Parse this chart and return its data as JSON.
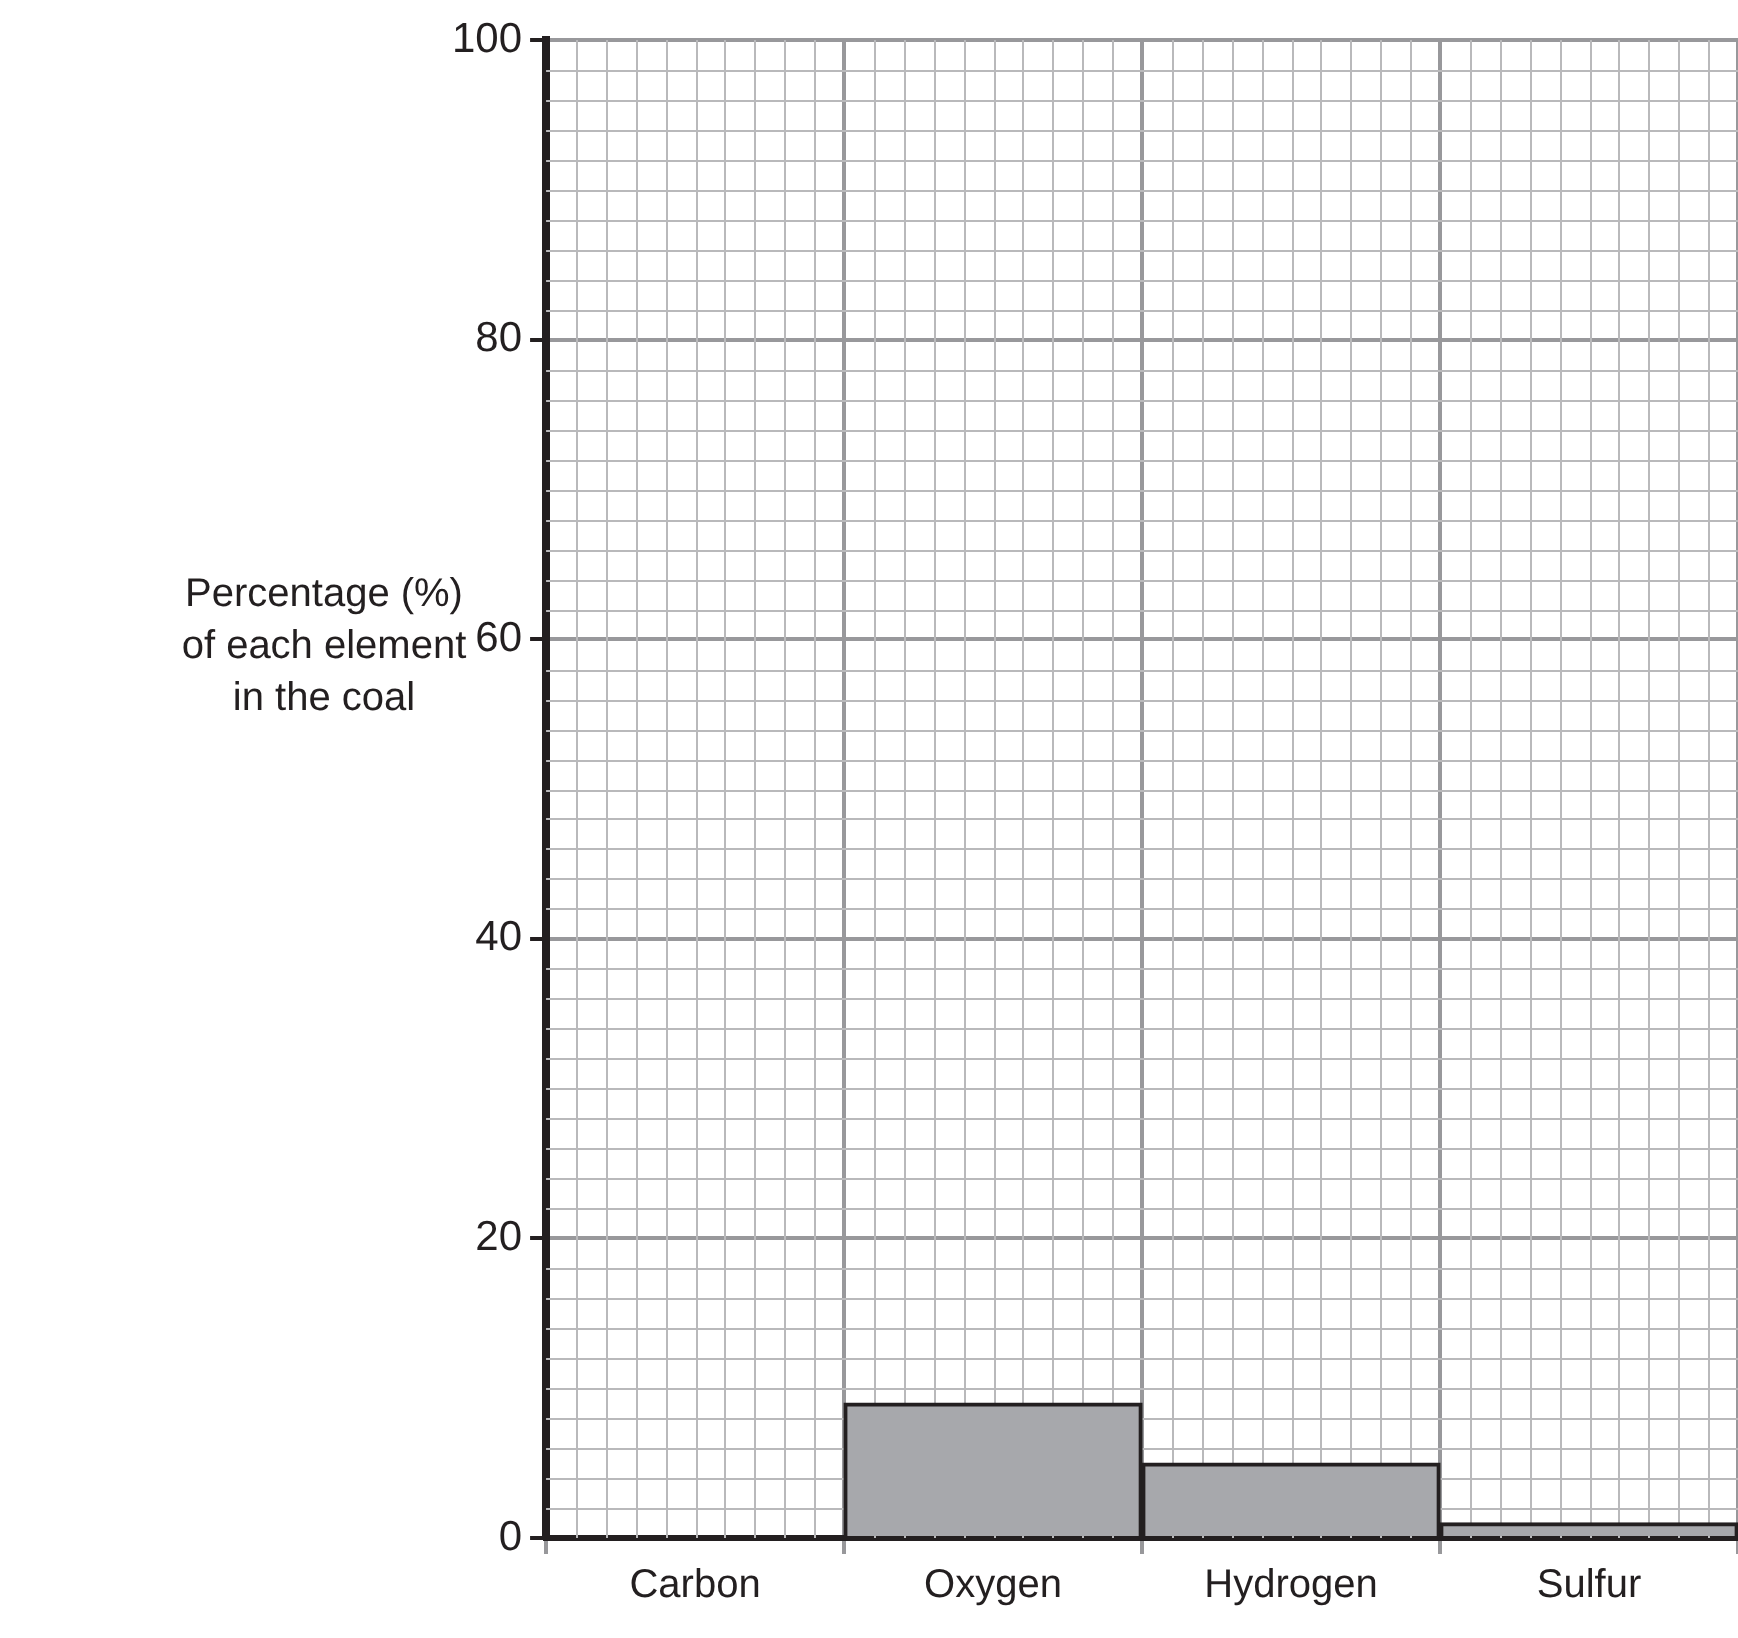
{
  "chart_data": {
    "type": "bar",
    "ylabel": "Percentage (%) of each element in the coal",
    "categories": [
      "Carbon",
      "Oxygen",
      "Hydrogen",
      "Sulfur"
    ],
    "values": [
      null,
      9,
      5,
      1
    ],
    "color": "#a7a8ac",
    "ylim": [
      0,
      100
    ],
    "yticks": [
      0,
      20,
      40,
      60,
      80,
      100
    ],
    "grid": true
  }
}
